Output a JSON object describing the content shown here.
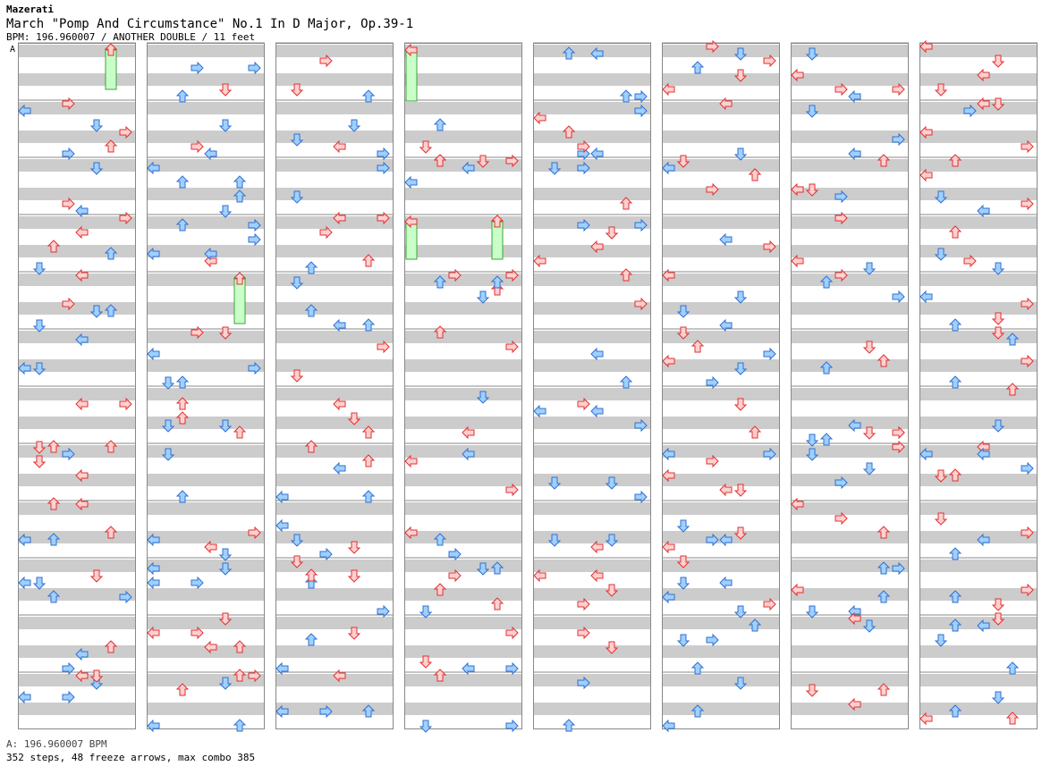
{
  "header": {
    "artist": "Mazerati",
    "title": "March \"Pomp And Circumstance\" No.1 In D Major, Op.39-1",
    "info": "BPM: 196.960007 / ANOTHER DOUBLE / 11 feet"
  },
  "chart": {
    "segment_marker": "A",
    "columns": 8,
    "measures_per_column": 12,
    "panels_per_side": 5,
    "colors": {
      "stripe": "#cccccc",
      "background": "#ffffff",
      "border": "#888888",
      "arrow_red_fill": "#ffd0d0",
      "arrow_red_stroke": "#e03030",
      "arrow_blue_fill": "#a0d0ff",
      "arrow_blue_stroke": "#3070d0",
      "freeze_fill": "#c8ffc8",
      "freeze_stroke": "#40a040"
    },
    "icons": {
      "left": "arrow-left-icon",
      "down": "arrow-down-icon",
      "up": "arrow-up-icon",
      "right": "arrow-right-icon",
      "center": "center-panel-icon"
    }
  },
  "footer": {
    "bpm": "A: 196.960007 BPM",
    "stats": "352 steps, 48 freeze arrows, max combo 385"
  }
}
